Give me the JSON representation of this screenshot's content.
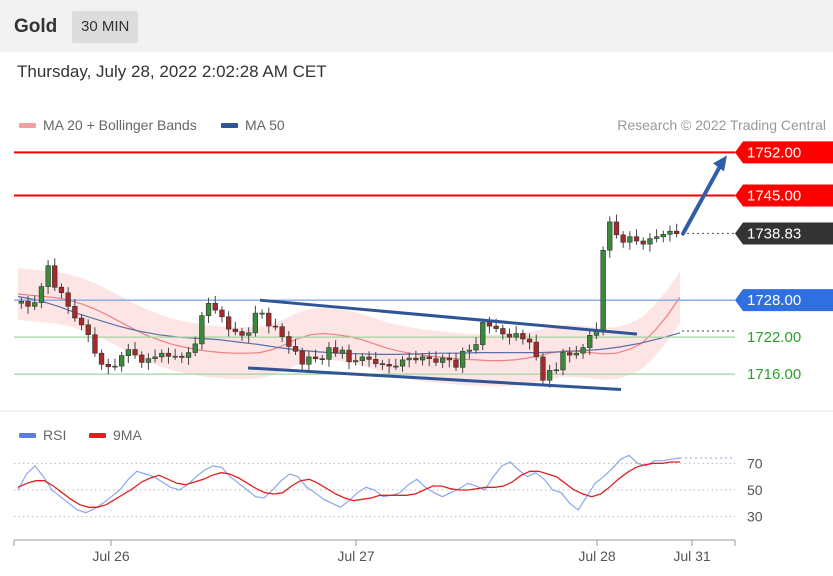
{
  "header": {
    "instrument": "Gold",
    "timeframe": "30 MIN",
    "datetime": "Thursday, July 28, 2022 2:02:28 AM CET"
  },
  "legend": {
    "ma20_bb": "MA 20 + Bollinger Bands",
    "ma50": "MA 50",
    "credit": "Research © 2022 Trading Central",
    "ma20_color": "#f08080",
    "ma50_color": "#2f5597"
  },
  "rsi_legend": {
    "rsi": "RSI",
    "ma9": "9MA",
    "rsi_color": "#5b7fe0",
    "ma9_color": "#e02020"
  },
  "chart_data": {
    "type": "candlestick",
    "title": "Gold",
    "timeframe": "30 MIN",
    "y_range": [
      1710.5,
      1754
    ],
    "price_levels": [
      {
        "label": "1752.00",
        "value": 1752.0,
        "kind": "resistance",
        "color": "#ff0000"
      },
      {
        "label": "1745.00",
        "value": 1745.0,
        "kind": "resistance",
        "color": "#ff0000"
      },
      {
        "label": "1738.83",
        "value": 1738.83,
        "kind": "last-price",
        "color": "#333333"
      },
      {
        "label": "1728.00",
        "value": 1728.0,
        "kind": "pivot",
        "color": "#2f6fe0"
      },
      {
        "label": "1722.00",
        "value": 1722.0,
        "kind": "support",
        "color": "#2e9e2e"
      },
      {
        "label": "1716.00",
        "value": 1716.0,
        "kind": "support",
        "color": "#2e9e2e"
      }
    ],
    "x_tick_labels": [
      "Jul 26",
      "Jul 27",
      "Jul 28",
      "Jul 31"
    ],
    "close_series": [
      1727.8,
      1727.0,
      1727.6,
      1730.2,
      1733.6,
      1730.1,
      1729.2,
      1727.0,
      1725.1,
      1724.0,
      1722.4,
      1719.4,
      1717.6,
      1717.2,
      1717.3,
      1719.0,
      1720.0,
      1719.1,
      1717.9,
      1718.5,
      1718.8,
      1719.4,
      1718.9,
      1718.9,
      1718.7,
      1719.5,
      1720.9,
      1725.5,
      1727.5,
      1726.4,
      1725.3,
      1723.3,
      1722.9,
      1722.3,
      1722.7,
      1725.9,
      1725.9,
      1723.8,
      1723.7,
      1722.1,
      1720.5,
      1719.7,
      1717.6,
      1718.8,
      1718.5,
      1718.4,
      1720.3,
      1719.4,
      1719.9,
      1718.0,
      1718.2,
      1718.8,
      1718.4,
      1717.7,
      1717.6,
      1717.3,
      1717.3,
      1718.3,
      1718.6,
      1718.3,
      1718.8,
      1718.5,
      1717.9,
      1718.6,
      1718.3,
      1717.1,
      1719.7,
      1719.9,
      1720.8,
      1724.4,
      1723.8,
      1723.4,
      1722.5,
      1722.0,
      1722.6,
      1721.7,
      1721.2,
      1718.8,
      1715.0,
      1716.6,
      1716.7,
      1719.5,
      1719.1,
      1719.4,
      1720.3,
      1722.3,
      1723.2,
      1736.1,
      1740.7,
      1738.6,
      1737.4,
      1738.3,
      1737.6,
      1737.1,
      1738.0,
      1738.3,
      1738.7,
      1739.2,
      1738.8
    ],
    "ma20_series": [
      1729.0,
      1728.8,
      1728.6,
      1728.4,
      1728.0,
      1727.4,
      1726.6,
      1725.6,
      1724.5,
      1723.4,
      1722.4,
      1721.6,
      1720.9,
      1720.4,
      1720.0,
      1719.7,
      1719.5,
      1719.4,
      1719.4,
      1719.5,
      1720.0,
      1720.8,
      1721.8,
      1722.4,
      1722.6,
      1722.4,
      1722.1,
      1721.6,
      1720.9,
      1720.2,
      1719.7,
      1719.3,
      1719.0,
      1718.8,
      1718.6,
      1718.4,
      1718.3,
      1718.2,
      1718.2,
      1718.3,
      1718.6,
      1719.0,
      1719.5,
      1719.8,
      1719.7,
      1719.5,
      1719.3,
      1719.4,
      1720.0,
      1721.0,
      1723.0,
      1725.5,
      1728.5
    ],
    "ma50_series": [
      1728.6,
      1728.0,
      1727.0,
      1725.8,
      1724.8,
      1723.8,
      1723.0,
      1722.4,
      1722.0,
      1721.8,
      1721.6,
      1721.2,
      1720.8,
      1720.3,
      1719.9,
      1719.6,
      1719.4,
      1719.3,
      1719.2,
      1719.2,
      1719.3,
      1719.4,
      1719.4,
      1719.5,
      1719.5,
      1719.5,
      1719.5,
      1719.6,
      1719.8,
      1720.0,
      1720.4,
      1721.0,
      1721.8,
      1722.7
    ],
    "channel": [
      {
        "from": 1728.0,
        "to": 1722.5
      },
      {
        "from": 1717.0,
        "to": 1713.5
      }
    ],
    "projection": {
      "from": 1738.8,
      "to": 1751.5
    },
    "rsi": {
      "levels": [
        70,
        50,
        30
      ],
      "y_range": [
        20,
        80
      ],
      "rsi_series": [
        50,
        62,
        68,
        60,
        50,
        45,
        40,
        35,
        33,
        36,
        40,
        45,
        50,
        58,
        64,
        62,
        60,
        56,
        52,
        50,
        54,
        60,
        65,
        68,
        67,
        60,
        55,
        50,
        45,
        44,
        50,
        57,
        62,
        60,
        52,
        48,
        43,
        40,
        37,
        42,
        48,
        52,
        50,
        45,
        46,
        48,
        54,
        58,
        52,
        48,
        45,
        48,
        51,
        55,
        53,
        50,
        60,
        68,
        71,
        65,
        60,
        63,
        58,
        50,
        48,
        40,
        35,
        45,
        55,
        60,
        66,
        73,
        76,
        70,
        68,
        72,
        72,
        73,
        74
      ],
      "ma9_series": [
        52,
        55,
        57,
        57,
        53,
        48,
        43,
        39,
        37,
        37,
        39,
        43,
        47,
        51,
        56,
        59,
        61,
        58,
        55,
        54,
        56,
        58,
        61,
        63,
        62,
        59,
        55,
        51,
        48,
        47,
        48,
        53,
        57,
        58,
        55,
        51,
        47,
        44,
        42,
        43,
        44,
        46,
        46,
        46,
        46,
        47,
        50,
        53,
        53,
        51,
        50,
        50,
        51,
        52,
        52,
        53,
        56,
        61,
        64,
        64,
        62,
        60,
        55,
        50,
        47,
        45,
        47,
        52,
        58,
        63,
        67,
        69,
        70,
        70,
        71,
        71
      ]
    }
  }
}
